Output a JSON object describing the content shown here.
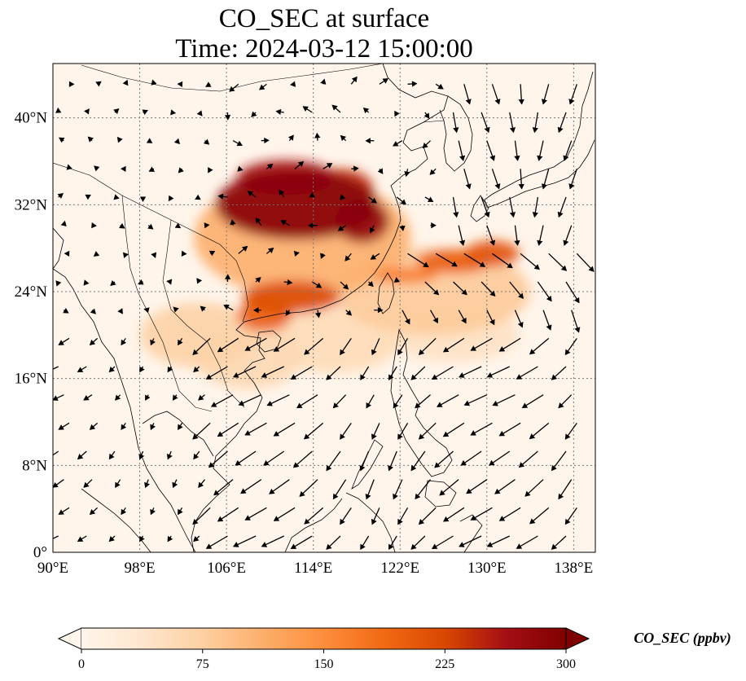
{
  "title": {
    "line1": "CO_SEC at surface",
    "line2": "Time: 2024-03-12 15:00:00"
  },
  "map": {
    "lon_range": [
      90,
      140
    ],
    "lat_range": [
      0,
      45
    ],
    "lon_ticks": [
      "90°E",
      "98°E",
      "106°E",
      "114°E",
      "122°E",
      "130°E",
      "138°E"
    ],
    "lon_tick_values": [
      90,
      98,
      106,
      114,
      122,
      130,
      138
    ],
    "lat_ticks": [
      "0°",
      "8°N",
      "16°N",
      "24°N",
      "32°N",
      "40°N"
    ],
    "lat_tick_values": [
      0,
      8,
      16,
      24,
      32,
      40
    ],
    "gridlines": true
  },
  "colorbar": {
    "label": "CO_SEC (ppbv)",
    "ticks": [
      "0",
      "75",
      "150",
      "225",
      "300"
    ],
    "tick_values": [
      0,
      75,
      150,
      225,
      300
    ],
    "range": [
      0,
      300
    ],
    "extend": "both",
    "colormap": [
      "#fff5eb",
      "#fee6ce",
      "#fdd0a2",
      "#fdae6b",
      "#fd8d3c",
      "#f16913",
      "#d94801",
      "#a50f15",
      "#7f0000"
    ]
  },
  "field": {
    "background_color": "#fff5eb",
    "plumes": [
      {
        "lon": 112.5,
        "lat": 32.0,
        "rx": 7.5,
        "ry": 3.2,
        "value": 290
      },
      {
        "lon": 111.5,
        "lat": 34.5,
        "rx": 4.5,
        "ry": 1.6,
        "value": 260
      },
      {
        "lon": 116.5,
        "lat": 33.5,
        "rx": 3.0,
        "ry": 1.8,
        "value": 240
      },
      {
        "lon": 118.5,
        "lat": 30.5,
        "rx": 2.5,
        "ry": 2.0,
        "value": 280
      },
      {
        "lon": 112.0,
        "lat": 23.5,
        "rx": 4.5,
        "ry": 1.5,
        "value": 220
      },
      {
        "lon": 109.5,
        "lat": 21.8,
        "rx": 2.5,
        "ry": 1.5,
        "value": 200
      },
      {
        "lon": 127.0,
        "lat": 26.8,
        "rx": 3.5,
        "ry": 1.1,
        "value": 200
      },
      {
        "lon": 130.5,
        "lat": 27.5,
        "rx": 2.5,
        "ry": 1.2,
        "value": 210
      },
      {
        "lon": 122.5,
        "lat": 25.5,
        "rx": 3.0,
        "ry": 0.7,
        "value": 170
      },
      {
        "lon": 113.0,
        "lat": 29.0,
        "rx": 10.0,
        "ry": 5.5,
        "value": 110
      },
      {
        "lon": 125.0,
        "lat": 24.0,
        "rx": 9.0,
        "ry": 4.0,
        "value": 80
      },
      {
        "lon": 103.5,
        "lat": 20.0,
        "rx": 5.5,
        "ry": 3.0,
        "value": 70
      },
      {
        "lon": 108.0,
        "lat": 18.0,
        "rx": 5.0,
        "ry": 3.0,
        "value": 60
      },
      {
        "lon": 116.0,
        "lat": 19.5,
        "rx": 6.0,
        "ry": 3.0,
        "value": 55
      },
      {
        "lon": 127.0,
        "lat": 20.0,
        "rx": 6.0,
        "ry": 2.5,
        "value": 45
      }
    ]
  }
}
